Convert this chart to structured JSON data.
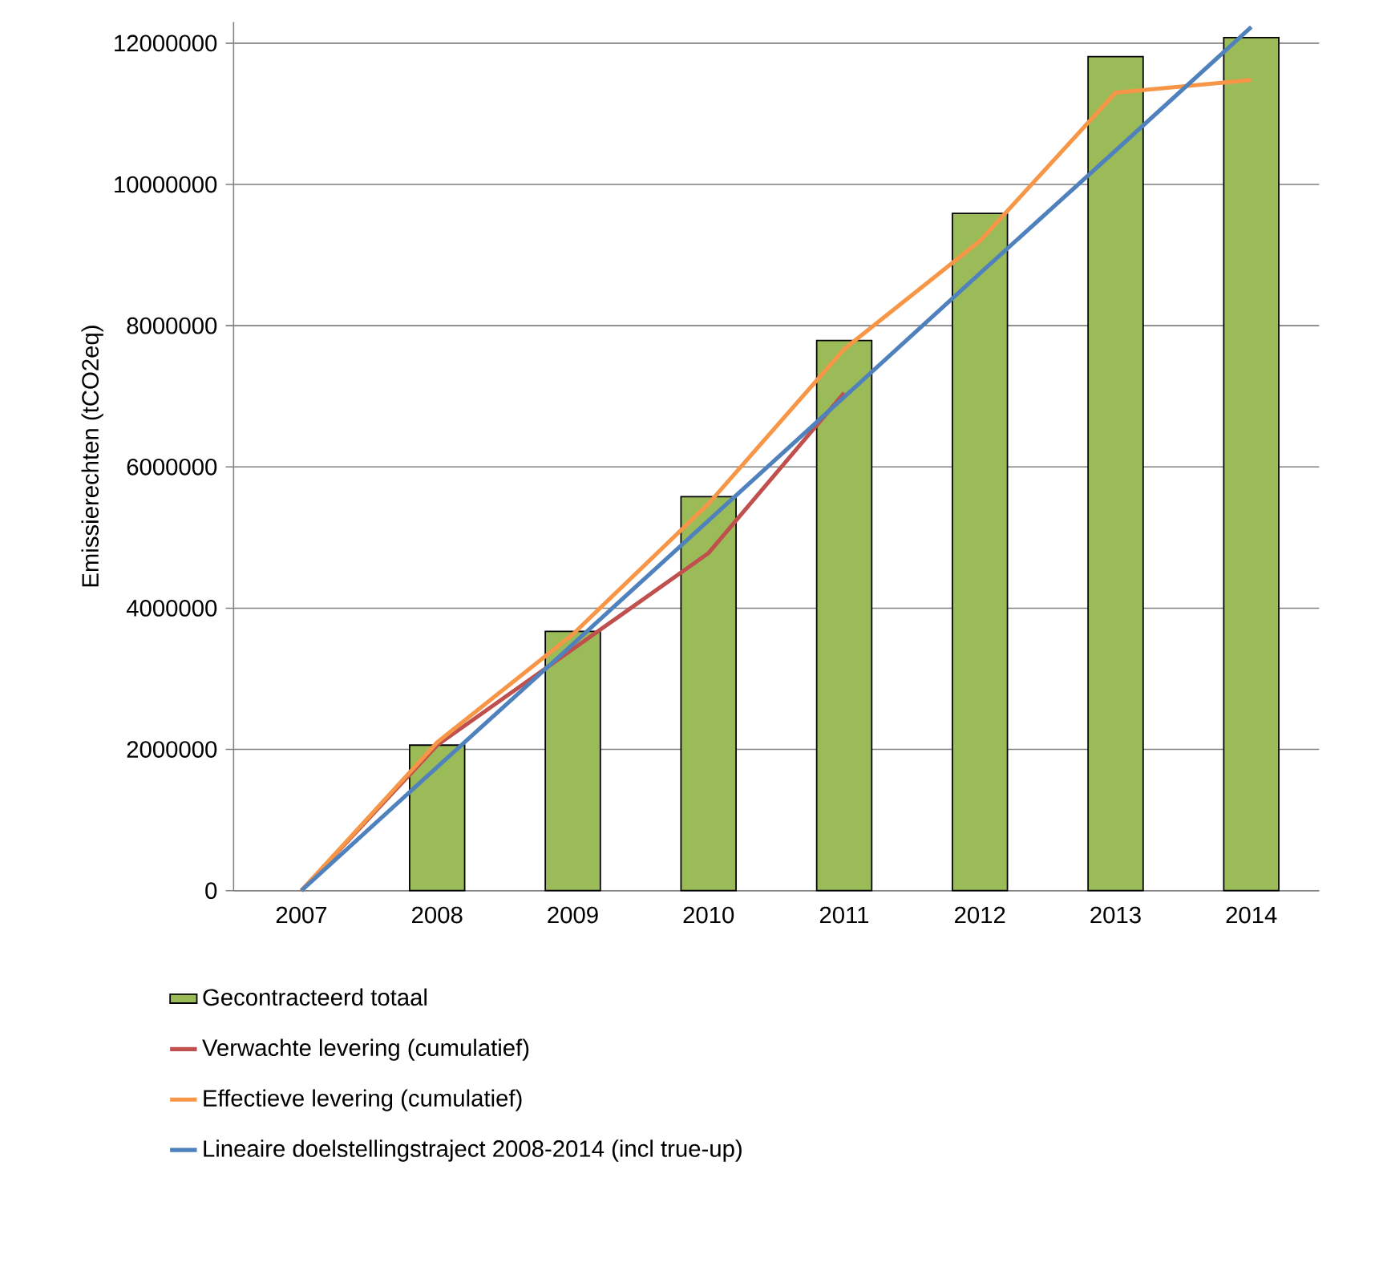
{
  "chart_data": {
    "type": "bar",
    "ylabel": "Emissierechten (tCO2eq)",
    "categories": [
      "2007",
      "2008",
      "2009",
      "2010",
      "2011",
      "2012",
      "2013",
      "2014"
    ],
    "ylim": [
      0,
      12300000
    ],
    "yticks": [
      0,
      2000000,
      4000000,
      6000000,
      8000000,
      10000000,
      12000000
    ],
    "grid": "y",
    "legend": "bottom",
    "series": [
      {
        "name": "Gecontracteerd totaal",
        "color": "#9bbb59",
        "values": [
          null,
          2060000,
          3670000,
          5580000,
          7790000,
          9590000,
          11810000,
          12080000
        ]
      },
      {
        "name": "Verwachte levering (cumulatief)",
        "type": "line",
        "color": "#c0504d",
        "values": [
          0,
          2060000,
          3420000,
          4780000,
          7050000,
          null,
          null,
          null
        ]
      },
      {
        "name": "Effectieve levering (cumulatief)",
        "type": "line",
        "color": "#f79646",
        "values": [
          0,
          2100000,
          3630000,
          5480000,
          7670000,
          9200000,
          11300000,
          11480000
        ]
      },
      {
        "name": "Lineaire doelstellingstraject 2008-2014 (incl true-up)",
        "type": "line",
        "color": "#4f81bd",
        "values": [
          0,
          1750000,
          3490000,
          5240000,
          6990000,
          8740000,
          10480000,
          12230000
        ]
      }
    ]
  }
}
